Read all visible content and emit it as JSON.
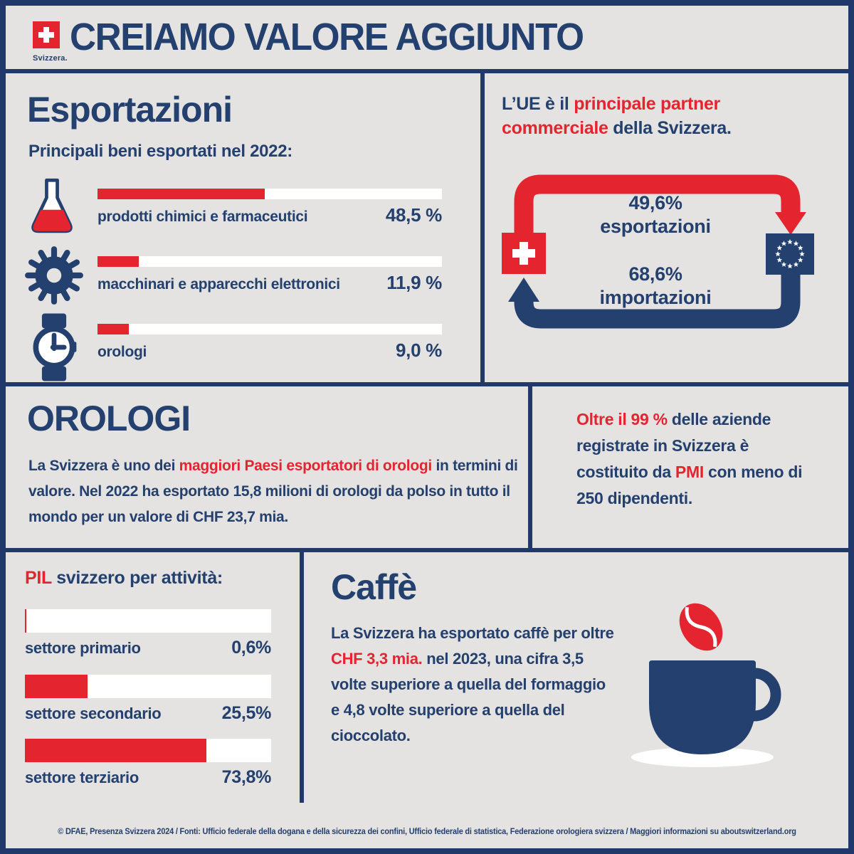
{
  "colors": {
    "navy": "#24406e",
    "red": "#e4242e",
    "background": "#e4e3e1",
    "white": "#ffffff"
  },
  "header": {
    "logo_label": "Svizzera.",
    "title": "CREIAMO VALORE AGGIUNTO"
  },
  "exports": {
    "title": "Esportazioni",
    "subtitle": "Principali beni esportati nel 2022:",
    "items": [
      {
        "icon": "flask-icon",
        "label": "prodotti chimici e farmaceutici",
        "value_label": "48,5 %",
        "pct": 48.5
      },
      {
        "icon": "gear-icon",
        "label": "macchinari e apparecchi elettronici",
        "value_label": "11,9 %",
        "pct": 11.9
      },
      {
        "icon": "watch-icon",
        "label": "orologi",
        "value_label": "9,0 %",
        "pct": 9.0
      }
    ]
  },
  "trade": {
    "intro": [
      {
        "t": "L’UE è il "
      },
      {
        "t": "principale partner commerciale"
      },
      {
        "t": " della Svizzera."
      }
    ],
    "flows": [
      {
        "pct_label": "49,6%",
        "label": "esportazioni",
        "pct": 49.6
      },
      {
        "pct_label": "68,6%",
        "label": "importazioni",
        "pct": 68.6
      }
    ]
  },
  "watches": {
    "title": "OROLOGI",
    "text": [
      {
        "t": "La  Svizzera è uno dei "
      },
      {
        "t": "maggiori Paesi esportatori di orologi"
      },
      {
        "t": " in termini di valore. Nel 2022 ha esportato 15,8 milioni di orologi da polso in tutto il mondo per un valore di CHF 23,7 mia."
      }
    ]
  },
  "companies": {
    "text": [
      {
        "t": "Oltre il 99 %"
      },
      {
        "t": " delle aziende registrate in Svizzera è costituito da "
      },
      {
        "t": "PMI"
      },
      {
        "t": " con meno di 250 dipendenti."
      }
    ]
  },
  "gdp": {
    "title": [
      {
        "t": "PIL"
      },
      {
        "t": " svizzero per attività:"
      }
    ],
    "items": [
      {
        "label": "settore primario",
        "value_label": "0,6%",
        "pct": 0.6
      },
      {
        "label": "settore secondario",
        "value_label": "25,5%",
        "pct": 25.5
      },
      {
        "label": "settore terziario",
        "value_label": "73,8%",
        "pct": 73.8
      }
    ]
  },
  "coffee": {
    "title": "Caffè",
    "text": [
      {
        "t": "La Svizzera ha esportato caffè per oltre "
      },
      {
        "t": "CHF 3,3 mia."
      },
      {
        "t": " nel 2023, una cifra 3,5 volte superiore a quella del formaggio e 4,8 volte superiore a quella del cioccolato."
      }
    ]
  },
  "footer": {
    "text": "© DFAE, Presenza Svizzera 2024 / Fonti: Ufficio federale della dogana e della sicurezza dei confini, Ufficio federale di statistica, Federazione orologiera svizzera / Maggiori informazioni su aboutswitzerland.org"
  },
  "chart_data": [
    {
      "type": "bar",
      "title": "Principali beni esportati nel 2022",
      "categories": [
        "prodotti chimici e farmaceutici",
        "macchinari e apparecchi elettronici",
        "orologi"
      ],
      "values": [
        48.5,
        11.9,
        9.0
      ],
      "unit": "%",
      "xlim": [
        0,
        100
      ],
      "orientation": "horizontal",
      "bar_color": "#e4242e",
      "track_color": "#ffffff"
    },
    {
      "type": "bar",
      "title": "PIL svizzero per attività",
      "categories": [
        "settore primario",
        "settore secondario",
        "settore terziario"
      ],
      "values": [
        0.6,
        25.5,
        73.8
      ],
      "unit": "%",
      "xlim": [
        0,
        100
      ],
      "orientation": "horizontal",
      "bar_color": "#e4242e",
      "track_color": "#ffffff"
    }
  ]
}
